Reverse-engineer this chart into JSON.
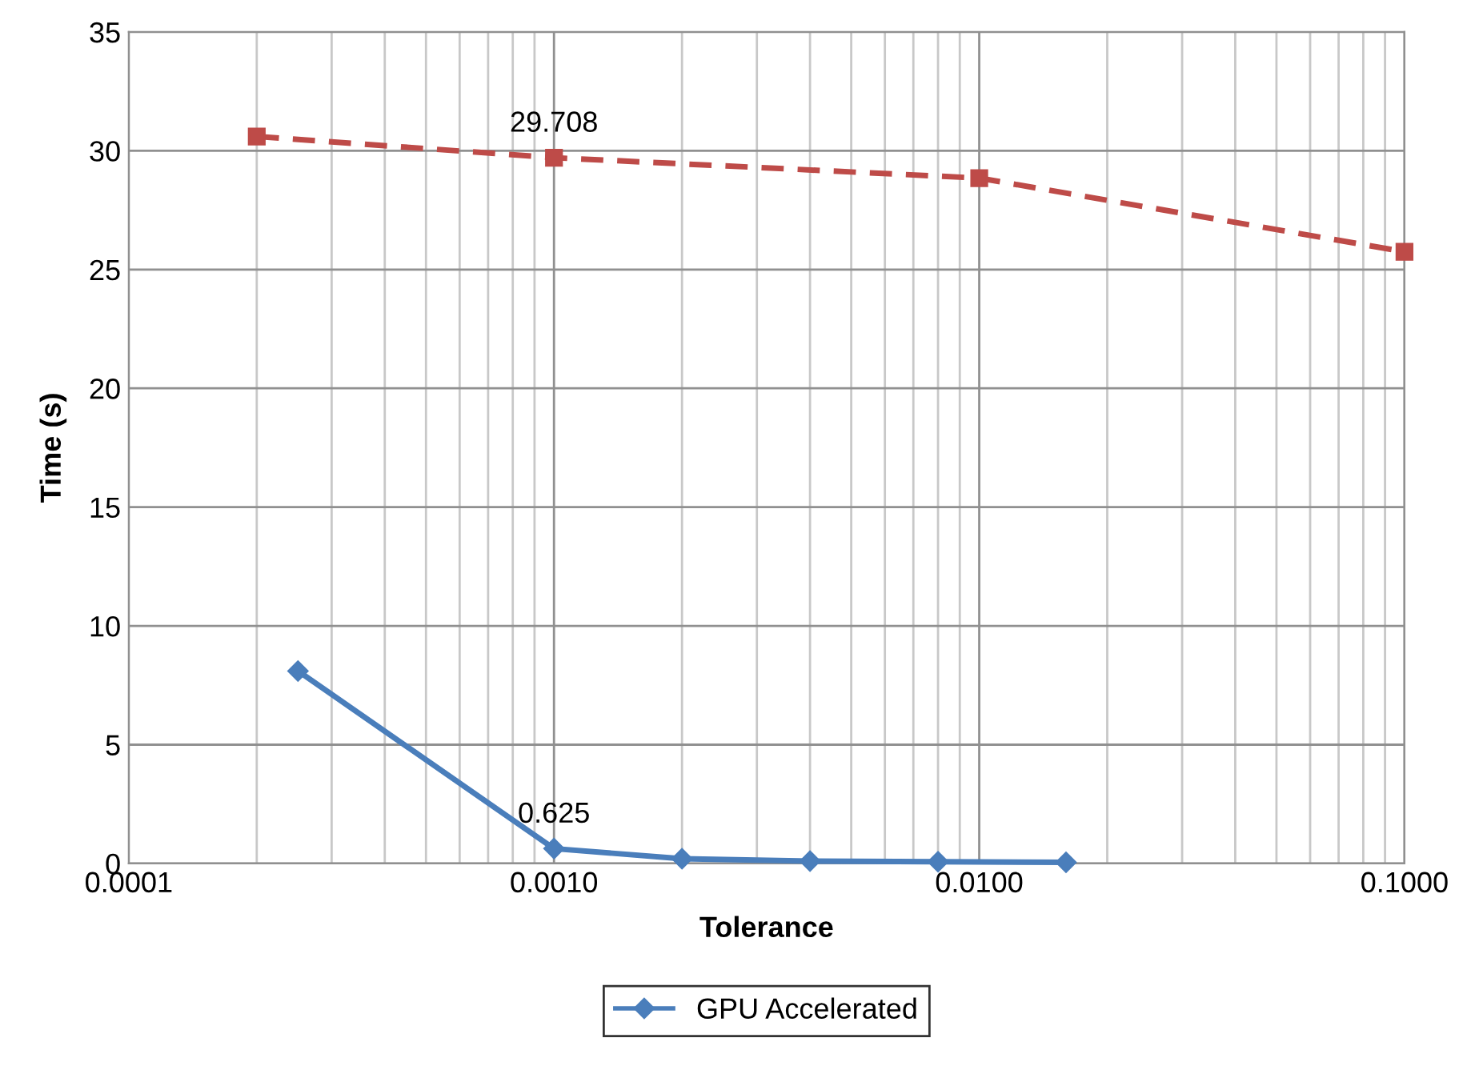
{
  "chart_data": {
    "type": "line",
    "xlabel": "Tolerance",
    "ylabel": "Time (s)",
    "log": "x",
    "xlim": [
      0.0001,
      0.1
    ],
    "xticks": [
      {
        "value": 0.0001,
        "label": "0.0001"
      },
      {
        "value": 0.001,
        "label": "0.0010"
      },
      {
        "value": 0.01,
        "label": "0.0100"
      },
      {
        "value": 0.1,
        "label": "0.1000"
      }
    ],
    "ylim": [
      0,
      35
    ],
    "yticks": [
      0,
      5,
      10,
      15,
      20,
      25,
      30,
      35
    ],
    "grid": true,
    "legend": "bottom",
    "series": [
      {
        "name": "GPU Accelerated",
        "color": "#4a7ebb",
        "marker": "diamond",
        "line_style": "solid",
        "x": [
          0.00025,
          0.001,
          0.002,
          0.004,
          0.008,
          0.016
        ],
        "values": [
          8.1,
          0.625,
          0.2,
          0.1,
          0.07,
          0.05
        ],
        "value_labels": [
          null,
          "0.625",
          null,
          null,
          null,
          null
        ]
      },
      {
        "color": "#be4b48",
        "marker": "square",
        "line_style": "dashed",
        "x": [
          0.0002,
          0.001,
          0.01,
          0.1
        ],
        "values": [
          30.6,
          29.708,
          28.85,
          25.75
        ],
        "value_labels": [
          null,
          "29.708",
          null,
          null
        ]
      }
    ]
  }
}
